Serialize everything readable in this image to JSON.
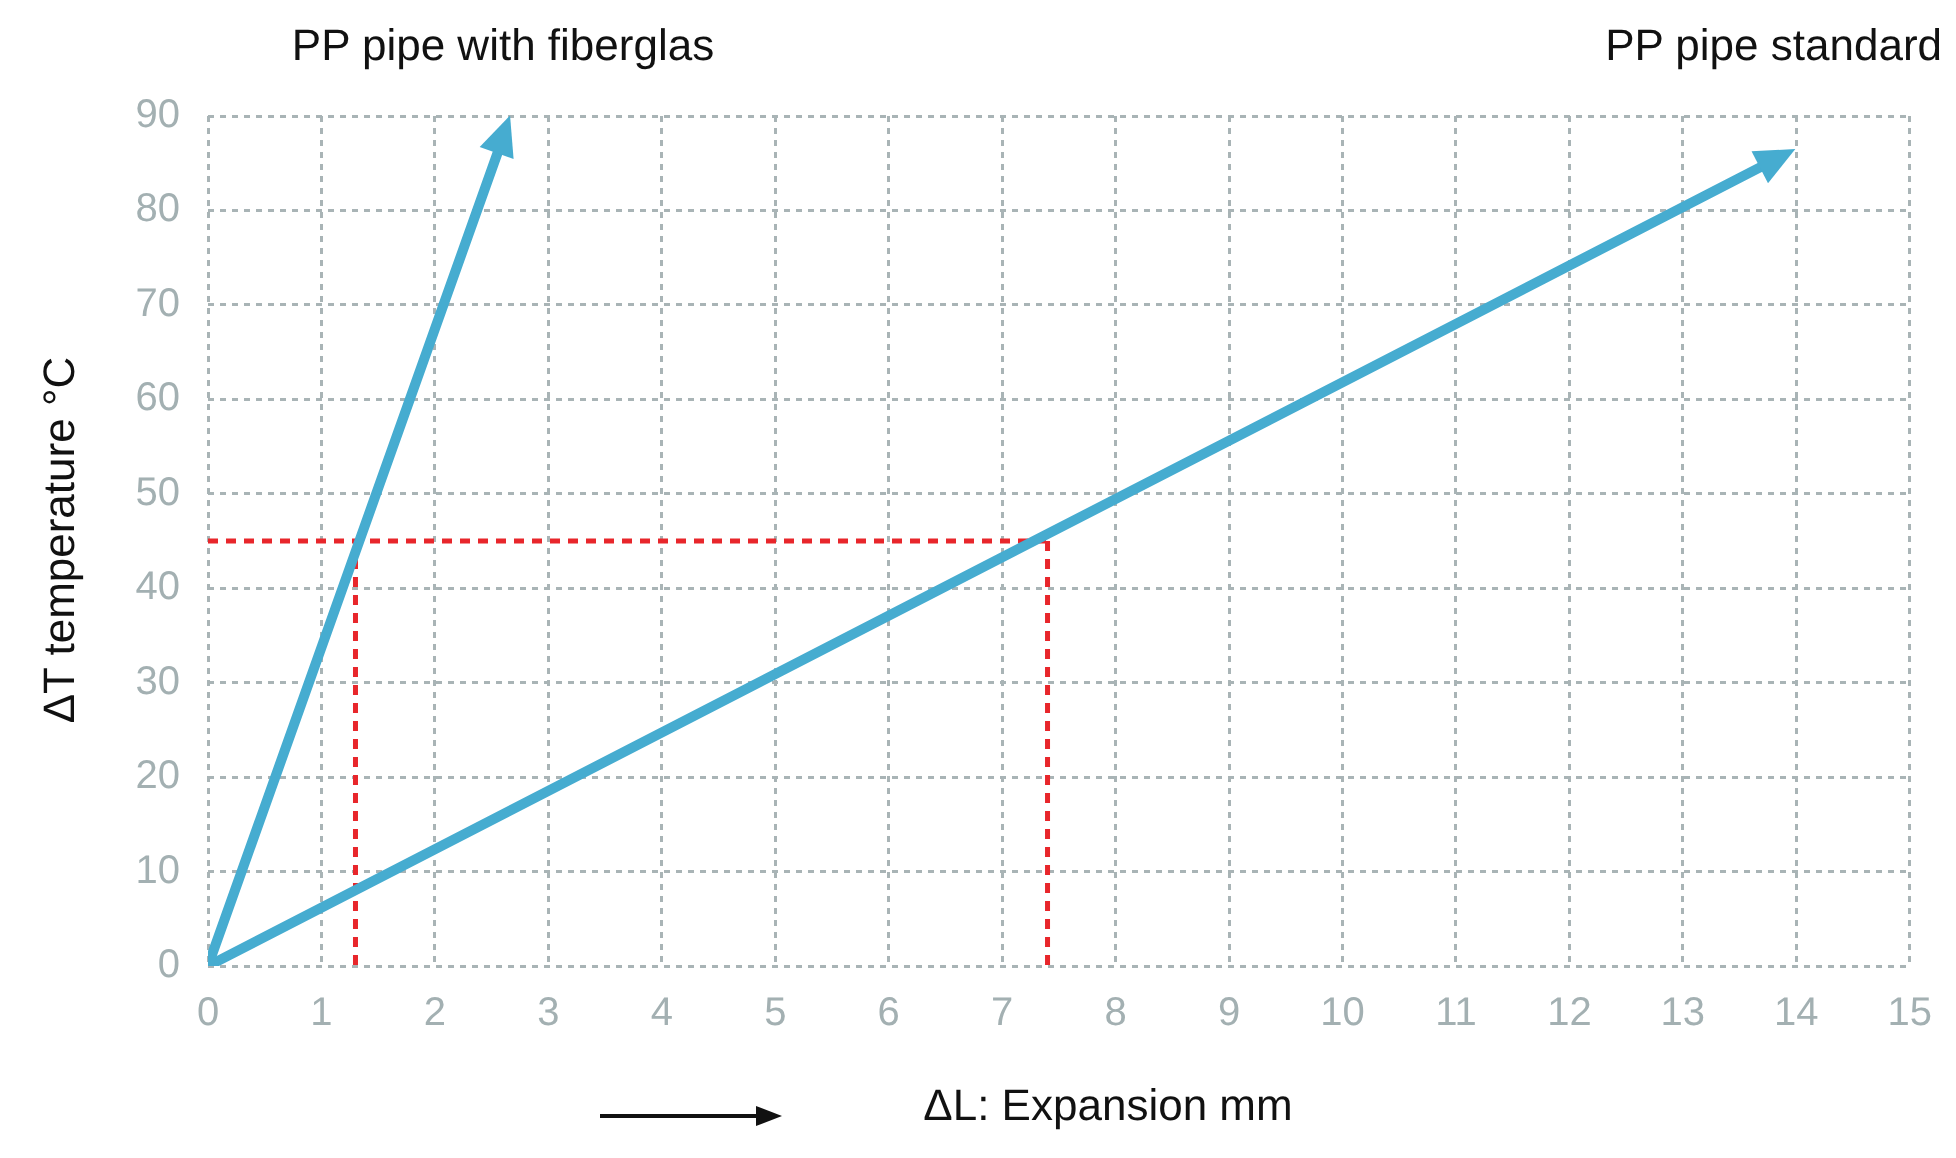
{
  "chart_data": {
    "type": "line",
    "xlabel": "ΔL: Expansion mm",
    "ylabel": "ΔT temperature °C",
    "xlim": [
      0,
      15
    ],
    "xticks": [
      0,
      1,
      2,
      3,
      4,
      5,
      6,
      7,
      8,
      9,
      10,
      11,
      12,
      13,
      14,
      15
    ],
    "ylim": [
      0,
      90
    ],
    "yticks": [
      0,
      10,
      20,
      30,
      40,
      50,
      60,
      70,
      80,
      90
    ],
    "grid": true,
    "legend": false,
    "line_style": "solid",
    "series": [
      {
        "name": "PP pipe with fiberglas",
        "color": "#46acd0",
        "x": [
          0,
          2.6
        ],
        "values": [
          0,
          87.7
        ]
      },
      {
        "name": "PP pipe standard",
        "color": "#46acd0",
        "x": [
          0,
          13.8
        ],
        "values": [
          0,
          85.3
        ]
      },
      {
        "color": "#e8262b",
        "line_style": "dashed",
        "x": [
          0,
          7.4
        ],
        "values": [
          45,
          45
        ]
      },
      {
        "color": "#e8262b",
        "line_style": "dashed",
        "x": [
          1.3,
          1.3
        ],
        "values": [
          45,
          0
        ]
      },
      {
        "color": "#e8262b",
        "line_style": "dashed",
        "x": [
          7.4,
          7.4
        ],
        "values": [
          45,
          0
        ]
      }
    ]
  }
}
